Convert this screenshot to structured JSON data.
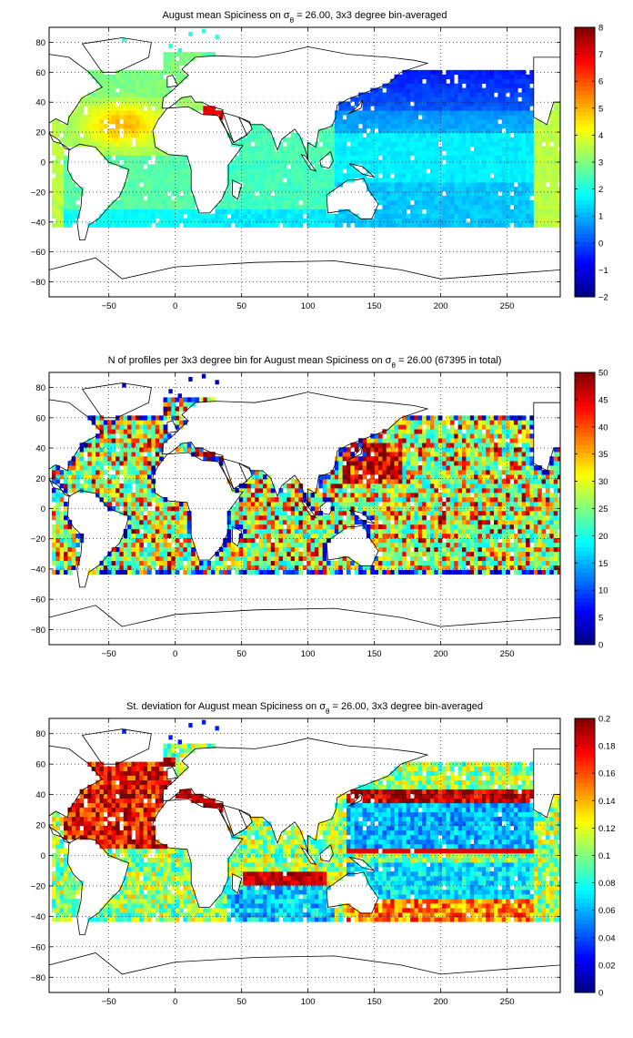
{
  "chart_data": [
    {
      "type": "heatmap",
      "title": "August mean Spiciness on σθ = 26.00, 3x3 degree bin-averaged",
      "title_parts": {
        "pre": "August mean Spiciness on σ",
        "sub": "θ",
        "post": " = 26.00, 3x3 degree bin-averaged"
      },
      "xlim": [
        -95,
        290
      ],
      "ylim": [
        -90,
        90
      ],
      "xticks": [
        -50,
        0,
        50,
        100,
        150,
        200,
        250
      ],
      "yticks": [
        -80,
        -60,
        -40,
        -20,
        0,
        20,
        40,
        60,
        80
      ],
      "grid": true,
      "colorbar": {
        "min": -2,
        "max": 8,
        "ticks": [
          -2,
          -1,
          0,
          1,
          2,
          3,
          4,
          5,
          6,
          7,
          8
        ]
      },
      "field": "spiciness"
    },
    {
      "type": "heatmap",
      "title": "N of profiles per 3x3 degree bin for August mean Spiciness on σθ = 26.00 (67395 in total)",
      "title_parts": {
        "pre": "N of profiles per 3x3 degree bin for August mean Spiciness on σ",
        "sub": "θ",
        "post": " = 26.00 (67395 in total)"
      },
      "xlim": [
        -95,
        290
      ],
      "ylim": [
        -90,
        90
      ],
      "xticks": [
        -50,
        0,
        50,
        100,
        150,
        200,
        250
      ],
      "yticks": [
        -80,
        -60,
        -40,
        -20,
        0,
        20,
        40,
        60,
        80
      ],
      "grid": true,
      "colorbar": {
        "min": 0,
        "max": 50,
        "ticks": [
          0,
          5,
          10,
          15,
          20,
          25,
          30,
          35,
          40,
          45,
          50
        ]
      },
      "field": "count"
    },
    {
      "type": "heatmap",
      "title": "St. deviation for August mean Spiciness on σθ = 26.00, 3x3 degree bin-averaged",
      "title_parts": {
        "pre": "St. deviation for August mean Spiciness on σ",
        "sub": "θ",
        "post": " = 26.00, 3x3 degree bin-averaged"
      },
      "xlim": [
        -95,
        290
      ],
      "ylim": [
        -90,
        90
      ],
      "xticks": [
        -50,
        0,
        50,
        100,
        150,
        200,
        250
      ],
      "yticks": [
        -80,
        -60,
        -40,
        -20,
        0,
        20,
        40,
        60,
        80
      ],
      "grid": true,
      "colorbar": {
        "min": 0,
        "max": 0.2,
        "ticks": [
          0,
          0.02,
          0.04,
          0.06,
          0.08,
          0.1,
          0.12,
          0.14,
          0.16,
          0.18,
          0.2
        ]
      },
      "field": "stdev"
    }
  ]
}
